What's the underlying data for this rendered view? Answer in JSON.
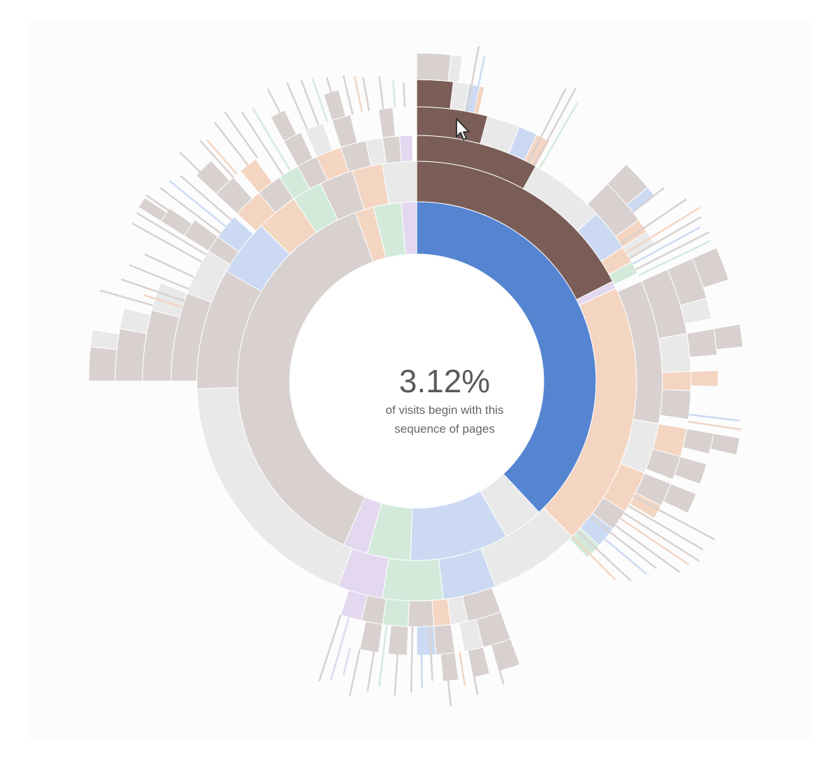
{
  "chart_data": {
    "type": "sunburst",
    "center": {
      "percentage": "3.12%",
      "explanation": "of visits begin with this sequence of pages"
    },
    "colors": {
      "highlight_inner": "#5585d1",
      "highlight_outer": "#7a5d56",
      "home": "#d8d1cf",
      "other": "#e9e9e9",
      "product": "#f3d5c2",
      "search": "#cbdaf2",
      "account": "#d3eadb",
      "end": "#e3d8ef",
      "background": "#fcfcfc"
    },
    "rings": [
      [
        {
          "start": 0,
          "end": 137,
          "key": "highlight_inner"
        },
        {
          "start": 137,
          "end": 150,
          "key": "other"
        },
        {
          "start": 150,
          "end": 182,
          "key": "search"
        },
        {
          "start": 182,
          "end": 196,
          "key": "account"
        },
        {
          "start": 196,
          "end": 204,
          "key": "end"
        },
        {
          "start": 204,
          "end": 340,
          "key": "home"
        },
        {
          "start": 340,
          "end": 346,
          "key": "product"
        },
        {
          "start": 346,
          "end": 355,
          "key": "account"
        },
        {
          "start": 355,
          "end": 360,
          "key": "end"
        }
      ],
      [
        {
          "start": 0,
          "end": 63,
          "key": "highlight_outer"
        },
        {
          "start": 63,
          "end": 65,
          "key": "end"
        },
        {
          "start": 65,
          "end": 135,
          "key": "product"
        },
        {
          "start": 135,
          "end": 159,
          "key": "other"
        },
        {
          "start": 159,
          "end": 173,
          "key": "search"
        },
        {
          "start": 173,
          "end": 189,
          "key": "account"
        },
        {
          "start": 189,
          "end": 201,
          "key": "end"
        },
        {
          "start": 201,
          "end": 268,
          "key": "other"
        },
        {
          "start": 268,
          "end": 300,
          "key": "home"
        },
        {
          "start": 300,
          "end": 315,
          "key": "search"
        },
        {
          "start": 315,
          "end": 326,
          "key": "product"
        },
        {
          "start": 326,
          "end": 334,
          "key": "account"
        },
        {
          "start": 334,
          "end": 343,
          "key": "home"
        },
        {
          "start": 343,
          "end": 351,
          "key": "product"
        },
        {
          "start": 351,
          "end": 360,
          "key": "other"
        }
      ],
      [
        {
          "start": 0,
          "end": 29,
          "key": "highlight_outer"
        },
        {
          "start": 29,
          "end": 47,
          "key": "other"
        },
        {
          "start": 47,
          "end": 57,
          "key": "search"
        },
        {
          "start": 57,
          "end": 61,
          "key": "product"
        },
        {
          "start": 61,
          "end": 64,
          "key": "account"
        },
        {
          "start": 66,
          "end": 100,
          "key": "home"
        },
        {
          "start": 100,
          "end": 112,
          "key": "other"
        },
        {
          "start": 112,
          "end": 122,
          "key": "product"
        },
        {
          "start": 122,
          "end": 127,
          "key": "home"
        },
        {
          "start": 127,
          "end": 132,
          "key": "search"
        },
        {
          "start": 132,
          "end": 136,
          "key": "account"
        },
        {
          "start": 160,
          "end": 168,
          "key": "home"
        },
        {
          "start": 168,
          "end": 172,
          "key": "other"
        },
        {
          "start": 172,
          "end": 176,
          "key": "product"
        },
        {
          "start": 176,
          "end": 182,
          "key": "home"
        },
        {
          "start": 182,
          "end": 188,
          "key": "account"
        },
        {
          "start": 188,
          "end": 193,
          "key": "home"
        },
        {
          "start": 193,
          "end": 198,
          "key": "end"
        },
        {
          "start": 270,
          "end": 291,
          "key": "home"
        },
        {
          "start": 291,
          "end": 302,
          "key": "other"
        },
        {
          "start": 302,
          "end": 306,
          "key": "home"
        },
        {
          "start": 306,
          "end": 312,
          "key": "search"
        },
        {
          "start": 313,
          "end": 320,
          "key": "product"
        },
        {
          "start": 320,
          "end": 326,
          "key": "home"
        },
        {
          "start": 326,
          "end": 331,
          "key": "account"
        },
        {
          "start": 331,
          "end": 336,
          "key": "home"
        },
        {
          "start": 336,
          "end": 342,
          "key": "product"
        },
        {
          "start": 342,
          "end": 348,
          "key": "home"
        },
        {
          "start": 348,
          "end": 352,
          "key": "other"
        },
        {
          "start": 352,
          "end": 356,
          "key": "home"
        },
        {
          "start": 356,
          "end": 359,
          "key": "end"
        }
      ],
      [
        {
          "start": 0,
          "end": 15,
          "key": "highlight_outer"
        },
        {
          "start": 15,
          "end": 22,
          "key": "other"
        },
        {
          "start": 22,
          "end": 26,
          "key": "search"
        },
        {
          "start": 26,
          "end": 29,
          "key": "product"
        },
        {
          "start": 44,
          "end": 54,
          "key": "home"
        },
        {
          "start": 54,
          "end": 57,
          "key": "product"
        },
        {
          "start": 57,
          "end": 60,
          "key": "other"
        },
        {
          "start": 66,
          "end": 80,
          "key": "home"
        },
        {
          "start": 80,
          "end": 88,
          "key": "other"
        },
        {
          "start": 88,
          "end": 92,
          "key": "product"
        },
        {
          "start": 92,
          "end": 98,
          "key": "home"
        },
        {
          "start": 100,
          "end": 106,
          "key": "product"
        },
        {
          "start": 106,
          "end": 111,
          "key": "home"
        },
        {
          "start": 112,
          "end": 117,
          "key": "home"
        },
        {
          "start": 117,
          "end": 120,
          "key": "product"
        },
        {
          "start": 160,
          "end": 166,
          "key": "home"
        },
        {
          "start": 166,
          "end": 170,
          "key": "other"
        },
        {
          "start": 172,
          "end": 176,
          "key": "home"
        },
        {
          "start": 176,
          "end": 180,
          "key": "search"
        },
        {
          "start": 182,
          "end": 186,
          "key": "home"
        },
        {
          "start": 188,
          "end": 192,
          "key": "home"
        },
        {
          "start": 270,
          "end": 285,
          "key": "home"
        },
        {
          "start": 285,
          "end": 291,
          "key": "other"
        },
        {
          "start": 302,
          "end": 306,
          "key": "home"
        },
        {
          "start": 313,
          "end": 318,
          "key": "home"
        },
        {
          "start": 320,
          "end": 324,
          "key": "product"
        },
        {
          "start": 331,
          "end": 335,
          "key": "home"
        },
        {
          "start": 336,
          "end": 340,
          "key": "other"
        },
        {
          "start": 342,
          "end": 346,
          "key": "home"
        },
        {
          "start": 352,
          "end": 355,
          "key": "home"
        }
      ],
      [
        {
          "start": 0,
          "end": 7,
          "key": "highlight_outer"
        },
        {
          "start": 7,
          "end": 10,
          "key": "other"
        },
        {
          "start": 10,
          "end": 12,
          "key": "search"
        },
        {
          "start": 12,
          "end": 13,
          "key": "product"
        },
        {
          "start": 44,
          "end": 50,
          "key": "home"
        },
        {
          "start": 50,
          "end": 52,
          "key": "search"
        },
        {
          "start": 66,
          "end": 74,
          "key": "home"
        },
        {
          "start": 74,
          "end": 78,
          "key": "other"
        },
        {
          "start": 80,
          "end": 85,
          "key": "home"
        },
        {
          "start": 88,
          "end": 91,
          "key": "product"
        },
        {
          "start": 100,
          "end": 104,
          "key": "home"
        },
        {
          "start": 106,
          "end": 110,
          "key": "home"
        },
        {
          "start": 112,
          "end": 116,
          "key": "home"
        },
        {
          "start": 160,
          "end": 164,
          "key": "home"
        },
        {
          "start": 166,
          "end": 169,
          "key": "home"
        },
        {
          "start": 172,
          "end": 175,
          "key": "home"
        },
        {
          "start": 270,
          "end": 280,
          "key": "home"
        },
        {
          "start": 280,
          "end": 284,
          "key": "other"
        },
        {
          "start": 302,
          "end": 305,
          "key": "home"
        },
        {
          "start": 313,
          "end": 317,
          "key": "home"
        },
        {
          "start": 331,
          "end": 334,
          "key": "home"
        },
        {
          "start": 342,
          "end": 345,
          "key": "home"
        }
      ],
      [
        {
          "start": 0,
          "end": 6,
          "key": "home"
        },
        {
          "start": 6,
          "end": 8,
          "key": "other"
        },
        {
          "start": 66,
          "end": 72,
          "key": "home"
        },
        {
          "start": 80,
          "end": 84,
          "key": "home"
        },
        {
          "start": 100,
          "end": 103,
          "key": "home"
        },
        {
          "start": 270,
          "end": 276,
          "key": "home"
        },
        {
          "start": 276,
          "end": 279,
          "key": "other"
        },
        {
          "start": 302,
          "end": 304,
          "key": "home"
        }
      ]
    ],
    "spikes": [
      {
        "angle": 10.5,
        "ring": 5,
        "r_end": 488,
        "key": "home"
      },
      {
        "angle": 11.8,
        "ring": 5,
        "r_end": 476,
        "key": "search"
      },
      {
        "angle": 27,
        "ring": 4,
        "r_end": 470,
        "key": "home"
      },
      {
        "angle": 28.5,
        "ring": 4,
        "r_end": 478,
        "key": "home"
      },
      {
        "angle": 30,
        "ring": 4,
        "r_end": 460,
        "key": "account"
      },
      {
        "angle": 52,
        "ring": 5,
        "r_end": 450,
        "key": "home"
      },
      {
        "angle": 56,
        "ring": 4,
        "r_end": 466,
        "key": "home"
      },
      {
        "angle": 58.5,
        "ring": 4,
        "r_end": 476,
        "key": "product"
      },
      {
        "angle": 60,
        "ring": 4,
        "r_end": 470,
        "key": "home"
      },
      {
        "angle": 61.5,
        "ring": 4,
        "r_end": 462,
        "key": "search"
      },
      {
        "angle": 63,
        "ring": 4,
        "r_end": 470,
        "key": "home"
      },
      {
        "angle": 64.5,
        "ring": 4,
        "r_end": 466,
        "key": "account"
      },
      {
        "angle": 97,
        "ring": 5,
        "r_end": 466,
        "key": "search"
      },
      {
        "angle": 98.5,
        "ring": 5,
        "r_end": 470,
        "key": "product"
      },
      {
        "angle": 118,
        "ring": 4,
        "r_end": 484,
        "key": "home"
      },
      {
        "angle": 120.5,
        "ring": 4,
        "r_end": 476,
        "key": "home"
      },
      {
        "angle": 122.5,
        "ring": 4,
        "r_end": 480,
        "key": "home"
      },
      {
        "angle": 124,
        "ring": 4,
        "r_end": 470,
        "key": "product"
      },
      {
        "angle": 126,
        "ring": 4,
        "r_end": 466,
        "key": "home"
      },
      {
        "angle": 128,
        "ring": 3,
        "r_end": 436,
        "key": "home"
      },
      {
        "angle": 130,
        "ring": 3,
        "r_end": 430,
        "key": "search"
      },
      {
        "angle": 133,
        "ring": 3,
        "r_end": 420,
        "key": "home"
      },
      {
        "angle": 135,
        "ring": 3,
        "r_end": 402,
        "key": "product"
      },
      {
        "angle": 164,
        "ring": 5,
        "r_end": 452,
        "key": "home"
      },
      {
        "angle": 169,
        "ring": 5,
        "r_end": 458,
        "key": "home"
      },
      {
        "angle": 171,
        "ring": 5,
        "r_end": 442,
        "key": "product"
      },
      {
        "angle": 174,
        "ring": 5,
        "r_end": 468,
        "key": "home"
      },
      {
        "angle": 177,
        "ring": 4,
        "r_end": 430,
        "key": "home"
      },
      {
        "angle": 179,
        "ring": 4,
        "r_end": 440,
        "key": "search"
      },
      {
        "angle": 181,
        "ring": 4,
        "r_end": 446,
        "key": "home"
      },
      {
        "angle": 184,
        "ring": 4,
        "r_end": 452,
        "key": "home"
      },
      {
        "angle": 187,
        "ring": 4,
        "r_end": 440,
        "key": "account"
      },
      {
        "angle": 189,
        "ring": 4,
        "r_end": 450,
        "key": "home"
      },
      {
        "angle": 192,
        "ring": 5,
        "r_end": 462,
        "key": "home"
      },
      {
        "angle": 194,
        "ring": 5,
        "r_end": 434,
        "key": "end"
      },
      {
        "angle": 196,
        "ring": 4,
        "r_end": 446,
        "key": "end"
      },
      {
        "angle": 198,
        "ring": 4,
        "r_end": 452,
        "key": "home"
      },
      {
        "angle": 286,
        "ring": 5,
        "r_end": 472,
        "key": "home"
      },
      {
        "angle": 287.5,
        "ring": 4,
        "r_end": 410,
        "key": "product"
      },
      {
        "angle": 289,
        "ring": 4,
        "r_end": 448,
        "key": "home"
      },
      {
        "angle": 292,
        "ring": 4,
        "r_end": 444,
        "key": "home"
      },
      {
        "angle": 295,
        "ring": 4,
        "r_end": 430,
        "key": "home"
      },
      {
        "angle": 299,
        "ring": 4,
        "r_end": 466,
        "key": "home"
      },
      {
        "angle": 301,
        "ring": 4,
        "r_end": 468,
        "key": "home"
      },
      {
        "angle": 304.5,
        "ring": 5,
        "r_end": 470,
        "key": "home"
      },
      {
        "angle": 307,
        "ring": 4,
        "r_end": 460,
        "key": "home"
      },
      {
        "angle": 309,
        "ring": 4,
        "r_end": 456,
        "key": "search"
      },
      {
        "angle": 311,
        "ring": 4,
        "r_end": 448,
        "key": "home"
      },
      {
        "angle": 314,
        "ring": 5,
        "r_end": 472,
        "key": "home"
      },
      {
        "angle": 318,
        "ring": 5,
        "r_end": 464,
        "key": "home"
      },
      {
        "angle": 319,
        "ring": 5,
        "r_end": 458,
        "key": "product"
      },
      {
        "angle": 322,
        "ring": 5,
        "r_end": 470,
        "key": "home"
      },
      {
        "angle": 324.5,
        "ring": 5,
        "r_end": 474,
        "key": "home"
      },
      {
        "angle": 327,
        "ring": 4,
        "r_end": 460,
        "key": "home"
      },
      {
        "angle": 329,
        "ring": 4,
        "r_end": 456,
        "key": "account"
      },
      {
        "angle": 333,
        "ring": 5,
        "r_end": 470,
        "key": "home"
      },
      {
        "angle": 336.5,
        "ring": 5,
        "r_end": 466,
        "key": "home"
      },
      {
        "angle": 339,
        "ring": 5,
        "r_end": 462,
        "key": "home"
      },
      {
        "angle": 341,
        "ring": 5,
        "r_end": 458,
        "key": "account"
      },
      {
        "angle": 343.5,
        "ring": 5,
        "r_end": 454,
        "key": "home"
      },
      {
        "angle": 346.5,
        "ring": 5,
        "r_end": 450,
        "key": "home"
      },
      {
        "angle": 348.5,
        "ring": 5,
        "r_end": 446,
        "key": "product"
      },
      {
        "angle": 350,
        "ring": 5,
        "r_end": 442,
        "key": "home"
      },
      {
        "angle": 353,
        "ring": 5,
        "r_end": 440,
        "key": "home"
      },
      {
        "angle": 355.5,
        "ring": 5,
        "r_end": 432,
        "key": "account"
      },
      {
        "angle": 357.5,
        "ring": 5,
        "r_end": 428,
        "key": "home"
      }
    ]
  }
}
